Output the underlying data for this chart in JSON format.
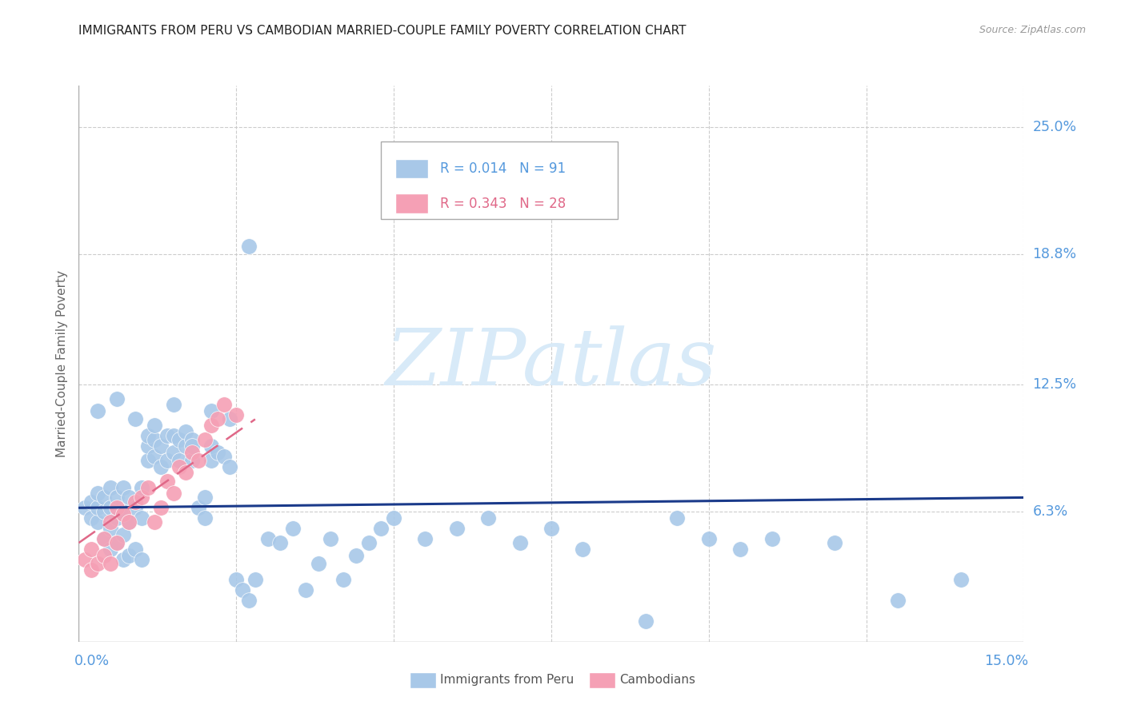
{
  "title": "IMMIGRANTS FROM PERU VS CAMBODIAN MARRIED-COUPLE FAMILY POVERTY CORRELATION CHART",
  "source": "Source: ZipAtlas.com",
  "ylabel": "Married-Couple Family Poverty",
  "peru_color": "#a8c8e8",
  "cambodian_color": "#f5a0b5",
  "peru_line_color": "#1a3a8a",
  "cambodian_line_color": "#e06888",
  "watermark_color": "#d8eaf8",
  "grid_color": "#cccccc",
  "right_label_color": "#5599dd",
  "xlim": [
    0.0,
    0.15
  ],
  "ylim": [
    0.0,
    0.27
  ],
  "ytick_values": [
    0.063,
    0.125,
    0.188,
    0.25
  ],
  "ytick_labels": [
    "6.3%",
    "12.5%",
    "18.8%",
    "25.0%"
  ],
  "peru_line_x": [
    0.0,
    0.15
  ],
  "peru_line_y": [
    0.065,
    0.07
  ],
  "camb_line_x": [
    0.0,
    0.028
  ],
  "camb_line_y": [
    0.048,
    0.108
  ],
  "blue_x": [
    0.001,
    0.002,
    0.002,
    0.003,
    0.003,
    0.003,
    0.004,
    0.004,
    0.004,
    0.005,
    0.005,
    0.005,
    0.005,
    0.006,
    0.006,
    0.006,
    0.007,
    0.007,
    0.007,
    0.007,
    0.008,
    0.008,
    0.008,
    0.009,
    0.009,
    0.01,
    0.01,
    0.01,
    0.011,
    0.011,
    0.011,
    0.012,
    0.012,
    0.013,
    0.013,
    0.014,
    0.014,
    0.015,
    0.015,
    0.016,
    0.016,
    0.017,
    0.017,
    0.018,
    0.018,
    0.019,
    0.02,
    0.02,
    0.021,
    0.021,
    0.022,
    0.023,
    0.024,
    0.025,
    0.026,
    0.027,
    0.028,
    0.03,
    0.032,
    0.034,
    0.036,
    0.038,
    0.04,
    0.042,
    0.044,
    0.046,
    0.048,
    0.05,
    0.055,
    0.06,
    0.065,
    0.07,
    0.075,
    0.08,
    0.09,
    0.095,
    0.1,
    0.105,
    0.11,
    0.12,
    0.13,
    0.14,
    0.003,
    0.006,
    0.009,
    0.012,
    0.015,
    0.018,
    0.021,
    0.024,
    0.027
  ],
  "blue_y": [
    0.065,
    0.06,
    0.068,
    0.058,
    0.065,
    0.072,
    0.05,
    0.063,
    0.07,
    0.045,
    0.055,
    0.065,
    0.075,
    0.048,
    0.06,
    0.07,
    0.04,
    0.052,
    0.063,
    0.075,
    0.042,
    0.058,
    0.07,
    0.045,
    0.065,
    0.04,
    0.06,
    0.075,
    0.088,
    0.095,
    0.1,
    0.09,
    0.098,
    0.085,
    0.095,
    0.088,
    0.1,
    0.092,
    0.1,
    0.088,
    0.098,
    0.095,
    0.102,
    0.088,
    0.098,
    0.065,
    0.06,
    0.07,
    0.088,
    0.095,
    0.092,
    0.09,
    0.085,
    0.03,
    0.025,
    0.02,
    0.03,
    0.05,
    0.048,
    0.055,
    0.025,
    0.038,
    0.05,
    0.03,
    0.042,
    0.048,
    0.055,
    0.06,
    0.05,
    0.055,
    0.06,
    0.048,
    0.055,
    0.045,
    0.01,
    0.06,
    0.05,
    0.045,
    0.05,
    0.048,
    0.02,
    0.03,
    0.112,
    0.118,
    0.108,
    0.105,
    0.115,
    0.095,
    0.112,
    0.108,
    0.192
  ],
  "pink_x": [
    0.001,
    0.002,
    0.002,
    0.003,
    0.004,
    0.004,
    0.005,
    0.005,
    0.006,
    0.006,
    0.007,
    0.008,
    0.009,
    0.01,
    0.011,
    0.012,
    0.013,
    0.014,
    0.015,
    0.016,
    0.017,
    0.018,
    0.019,
    0.02,
    0.021,
    0.022,
    0.023,
    0.025
  ],
  "pink_y": [
    0.04,
    0.045,
    0.035,
    0.038,
    0.042,
    0.05,
    0.058,
    0.038,
    0.065,
    0.048,
    0.062,
    0.058,
    0.068,
    0.07,
    0.075,
    0.058,
    0.065,
    0.078,
    0.072,
    0.085,
    0.082,
    0.092,
    0.088,
    0.098,
    0.105,
    0.108,
    0.115,
    0.11
  ]
}
